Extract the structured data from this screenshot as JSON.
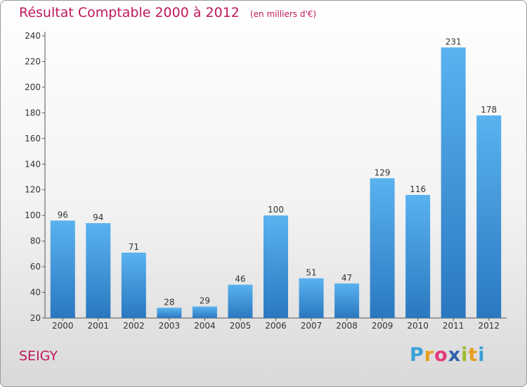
{
  "title": "Résultat Comptable 2000 à 2012",
  "subtitle": "(en milliers d'€)",
  "commune": "SEIGY",
  "logo": {
    "text": "Proxiti",
    "letters": [
      "P",
      "r",
      "o",
      "x",
      "i",
      "t",
      "i"
    ],
    "colors": [
      "#3aa0d8",
      "#e8a020",
      "#e33a7a",
      "#2f5faa",
      "#9bbb2a",
      "#e8a020",
      "#3aa0d8"
    ]
  },
  "colors": {
    "bar": "#4aa3e4",
    "title": "#c0185b"
  },
  "chart_data": {
    "type": "bar",
    "categories": [
      "2000",
      "2001",
      "2002",
      "2003",
      "2004",
      "2005",
      "2006",
      "2007",
      "2008",
      "2009",
      "2010",
      "2011",
      "2012"
    ],
    "values": [
      96,
      94,
      71,
      28,
      29,
      46,
      100,
      51,
      47,
      129,
      116,
      231,
      178
    ],
    "data_labels": [
      "96",
      "94",
      "71",
      "28",
      "29",
      "46",
      "100",
      "51",
      "47",
      "129",
      "116",
      "231",
      "178"
    ],
    "yticks": [
      "20",
      "40",
      "60",
      "80",
      "100",
      "120",
      "140",
      "160",
      "180",
      "200",
      "220",
      "240"
    ],
    "ylim": [
      20,
      240
    ],
    "grid": false,
    "legend": "none"
  }
}
